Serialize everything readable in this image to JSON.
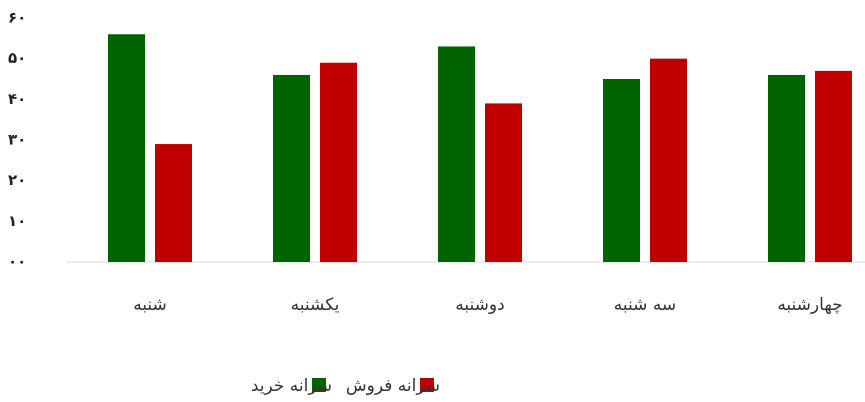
{
  "chart_data": {
    "type": "bar",
    "categories": [
      "شنبه",
      "یکشنبه",
      "دوشنبه",
      "سه شنبه",
      "چهارشنبه"
    ],
    "series": [
      {
        "name": "سرانه خرید",
        "color": "#006400",
        "values": [
          56,
          46,
          53,
          45,
          46
        ]
      },
      {
        "name": "سرانه فروش",
        "color": "#c00000",
        "values": [
          29,
          49,
          39,
          50,
          47
        ]
      }
    ],
    "ylim": [
      0,
      60
    ],
    "yticks": [
      {
        "value": 0,
        "label": "۰۰"
      },
      {
        "value": 10,
        "label": "۱۰"
      },
      {
        "value": 20,
        "label": "۲۰"
      },
      {
        "value": 30,
        "label": "۳۰"
      },
      {
        "value": 40,
        "label": "۴۰"
      },
      {
        "value": 50,
        "label": "۵۰"
      },
      {
        "value": 60,
        "label": "۶۰"
      }
    ],
    "grid": false
  }
}
